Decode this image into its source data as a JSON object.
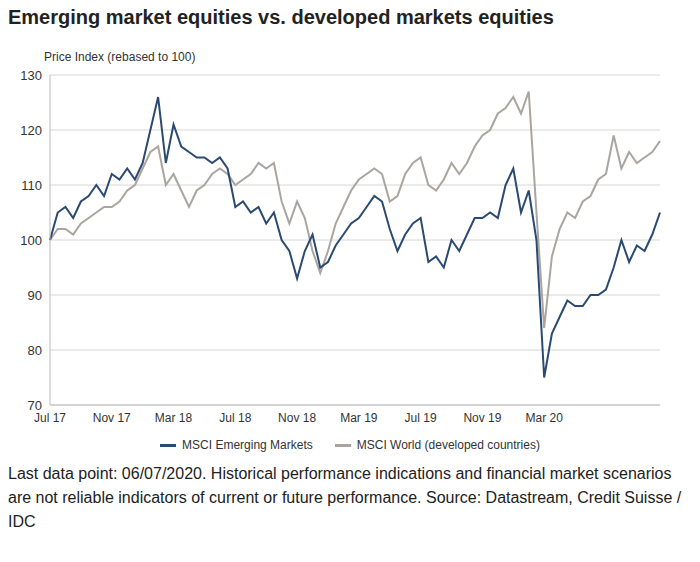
{
  "chart_data": {
    "type": "line",
    "title": "Emerging market equities vs. developed markets equities",
    "y_label": "Price Index (rebased to 100)",
    "footnote": "Last data point: 06/07/2020. Historical performance indications and financial market scenarios are not reliable indicators of current or future performance. Source: Datastream, Credit Suisse / IDC",
    "categories": [
      "Jul 17",
      null,
      null,
      null,
      null,
      null,
      null,
      null,
      "Nov 17",
      null,
      null,
      null,
      null,
      null,
      null,
      null,
      "Mar 18",
      null,
      null,
      null,
      null,
      null,
      null,
      null,
      "Jul 18",
      null,
      null,
      null,
      null,
      null,
      null,
      null,
      "Nov 18",
      null,
      null,
      null,
      null,
      null,
      null,
      null,
      "Mar 19",
      null,
      null,
      null,
      null,
      null,
      null,
      null,
      "Jul 19",
      null,
      null,
      null,
      null,
      null,
      null,
      null,
      "Nov 19",
      null,
      null,
      null,
      null,
      null,
      null,
      null,
      "Mar 20",
      null,
      null,
      null,
      null,
      null,
      null,
      null,
      null,
      null,
      null,
      null,
      null,
      null,
      null,
      null
    ],
    "series": [
      {
        "name": "MSCI Emerging Markets",
        "color": "#2b4a72",
        "values": [
          100,
          105,
          106,
          104,
          107,
          108,
          110,
          108,
          112,
          111,
          113,
          111,
          114,
          120,
          126,
          114,
          121,
          117,
          116,
          115,
          115,
          114,
          115,
          113,
          106,
          107,
          105,
          106,
          103,
          105,
          100,
          98,
          93,
          98,
          101,
          95,
          96,
          99,
          101,
          103,
          104,
          106,
          108,
          107,
          102,
          98,
          101,
          103,
          104,
          96,
          97,
          95,
          100,
          98,
          101,
          104,
          104,
          105,
          104,
          110,
          113,
          105,
          109,
          100,
          75,
          83,
          86,
          89,
          88,
          88,
          90,
          90,
          91,
          95,
          100,
          96,
          99,
          98,
          101,
          105
        ]
      },
      {
        "name": "MSCI World (developed countries)",
        "color": "#aaa5a0",
        "values": [
          100,
          102,
          102,
          101,
          103,
          104,
          105,
          106,
          106,
          107,
          109,
          110,
          113,
          116,
          117,
          110,
          112,
          109,
          106,
          109,
          110,
          112,
          113,
          112,
          110,
          111,
          112,
          114,
          113,
          114,
          107,
          103,
          107,
          104,
          98,
          94,
          98,
          103,
          106,
          109,
          111,
          112,
          113,
          112,
          107,
          108,
          112,
          114,
          115,
          110,
          109,
          111,
          114,
          112,
          114,
          117,
          119,
          120,
          123,
          124,
          126,
          123,
          127,
          105,
          84,
          97,
          102,
          105,
          104,
          107,
          108,
          111,
          112,
          119,
          113,
          116,
          114,
          115,
          116,
          118
        ]
      }
    ],
    "ylim": [
      70,
      130
    ],
    "yticks": [
      70,
      80,
      90,
      100,
      110,
      120,
      130
    ],
    "grid": true,
    "legend": "bottom"
  }
}
